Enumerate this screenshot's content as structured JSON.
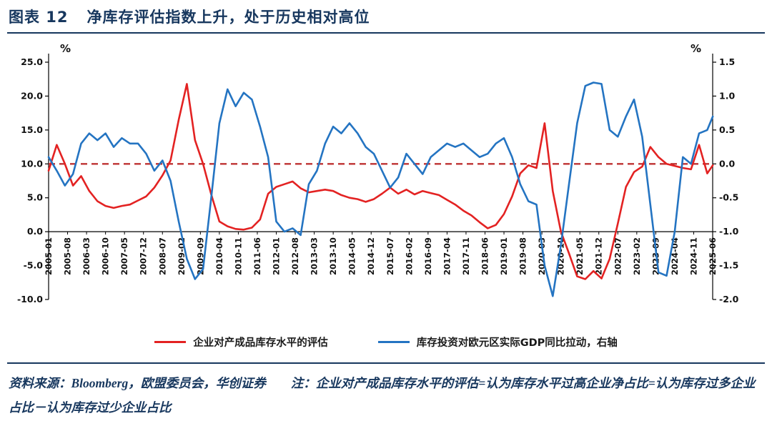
{
  "colors": {
    "navy": "#17375e",
    "red": "#e32222",
    "blue": "#2474c2",
    "dashed": "#bf3232",
    "axis": "#000000"
  },
  "header": {
    "figure_label": "图表 12",
    "title": "净库存评估指数上升，处于历史相对高位"
  },
  "legend": [
    {
      "label": "企业对产成品库存水平的评估",
      "color": "#e32222"
    },
    {
      "label": "库存投资对欧元区实际GDP同比拉动，右轴",
      "color": "#2474c2"
    }
  ],
  "footer": {
    "text": "资料来源：Bloomberg，欧盟委员会，华创证券　　注：企业对产成品库存水平的评估=认为库存水平过高企业净占比=认为库存过多企业占比－认为库存过少企业占比"
  },
  "chart_data": {
    "type": "line",
    "title": "净库存评估指数上升，处于历史相对高位",
    "left_axis": {
      "unit": "%",
      "min": -10,
      "max": 25,
      "ticks": [
        "25.0",
        "20.0",
        "15.0",
        "10.0",
        "5.0",
        "0.0",
        "-5.0",
        "-10.0"
      ]
    },
    "right_axis": {
      "unit": "%",
      "min": -2,
      "max": 1.5,
      "ticks": [
        "1.5",
        "1.0",
        "0.5",
        "0.0",
        "-0.5",
        "-1.0",
        "-1.5",
        "-2.0"
      ]
    },
    "x_tick_labels": [
      "2005-01",
      "2005-08",
      "2006-03",
      "2006-10",
      "2007-05",
      "2007-12",
      "2008-07",
      "2009-02",
      "2009-09",
      "2010-04",
      "2010-11",
      "2011-06",
      "2012-01",
      "2012-08",
      "2013-03",
      "2013-10",
      "2014-05",
      "2014-12",
      "2015-07",
      "2016-02",
      "2016-09",
      "2017-04",
      "2017-11",
      "2018-06",
      "2019-01",
      "2019-08",
      "2020-03",
      "2020-10",
      "2021-05",
      "2021-12",
      "2022-07",
      "2023-02",
      "2023-09",
      "2024-04",
      "2024-11",
      "2025-06"
    ],
    "reference_line": {
      "axis": "left",
      "value": 10,
      "style": "dashed",
      "color": "#bf3232"
    },
    "x": [
      2005.0,
      2005.25,
      2005.5,
      2005.75,
      2006.0,
      2006.25,
      2006.5,
      2006.75,
      2007.0,
      2007.25,
      2007.5,
      2007.75,
      2008.0,
      2008.25,
      2008.5,
      2008.75,
      2009.0,
      2009.25,
      2009.5,
      2009.75,
      2010.0,
      2010.25,
      2010.5,
      2010.75,
      2011.0,
      2011.25,
      2011.5,
      2011.75,
      2012.0,
      2012.25,
      2012.5,
      2012.75,
      2013.0,
      2013.25,
      2013.5,
      2013.75,
      2014.0,
      2014.25,
      2014.5,
      2014.75,
      2015.0,
      2015.25,
      2015.5,
      2015.75,
      2016.0,
      2016.25,
      2016.5,
      2016.75,
      2017.0,
      2017.25,
      2017.5,
      2017.75,
      2018.0,
      2018.25,
      2018.5,
      2018.75,
      2019.0,
      2019.25,
      2019.5,
      2019.75,
      2020.0,
      2020.25,
      2020.5,
      2020.75,
      2021.0,
      2021.25,
      2021.5,
      2021.75,
      2022.0,
      2022.25,
      2022.5,
      2022.75,
      2023.0,
      2023.25,
      2023.5,
      2023.75,
      2024.0,
      2024.25,
      2024.5,
      2024.75,
      2025.0,
      2025.25,
      2025.42
    ],
    "series": [
      {
        "name": "企业对产成品库存水平的评估",
        "axis": "left",
        "color": "#e32222",
        "values": [
          9.0,
          12.8,
          10.0,
          6.8,
          8.2,
          6.0,
          4.5,
          3.8,
          3.5,
          3.8,
          4.0,
          4.6,
          5.2,
          6.5,
          8.3,
          10.5,
          16.5,
          21.8,
          13.5,
          10.0,
          5.5,
          1.5,
          0.8,
          0.4,
          0.3,
          0.6,
          1.8,
          5.6,
          6.6,
          7.0,
          7.4,
          6.4,
          5.8,
          6.0,
          6.2,
          6.0,
          5.4,
          5.0,
          4.8,
          4.4,
          4.8,
          5.6,
          6.5,
          5.6,
          6.2,
          5.5,
          6.0,
          5.7,
          5.4,
          4.7,
          4.0,
          3.1,
          2.4,
          1.4,
          0.5,
          1.0,
          2.6,
          5.2,
          8.6,
          9.8,
          9.4,
          16.0,
          6.0,
          0.0,
          -3.2,
          -6.6,
          -7.0,
          -5.8,
          -6.9,
          -4.0,
          1.2,
          6.6,
          8.8,
          9.6,
          12.5,
          11.0,
          10.0,
          9.7,
          9.4,
          9.2,
          12.8,
          8.6,
          9.8
        ]
      },
      {
        "name": "库存投资对欧元区实际GDP同比拉动，右轴",
        "axis": "right",
        "color": "#2474c2",
        "values": [
          0.1,
          -0.1,
          -0.32,
          -0.15,
          0.3,
          0.45,
          0.35,
          0.45,
          0.25,
          0.38,
          0.3,
          0.3,
          0.15,
          -0.1,
          0.05,
          -0.25,
          -0.85,
          -1.4,
          -1.7,
          -1.55,
          -0.5,
          0.6,
          1.1,
          0.85,
          1.05,
          0.95,
          0.55,
          0.1,
          -0.85,
          -1.0,
          -0.95,
          -1.05,
          -0.3,
          -0.1,
          0.3,
          0.55,
          0.45,
          0.6,
          0.45,
          0.25,
          0.15,
          -0.1,
          -0.35,
          -0.2,
          0.15,
          0.0,
          -0.15,
          0.1,
          0.2,
          0.3,
          0.25,
          0.3,
          0.2,
          0.1,
          0.15,
          0.3,
          0.38,
          0.1,
          -0.3,
          -0.55,
          -0.6,
          -1.5,
          -1.95,
          -1.2,
          -0.3,
          0.6,
          1.15,
          1.2,
          1.18,
          0.5,
          0.4,
          0.7,
          0.95,
          0.4,
          -0.6,
          -1.6,
          -1.65,
          -1.0,
          0.1,
          0.0,
          0.45,
          0.5,
          0.7
        ]
      }
    ]
  }
}
